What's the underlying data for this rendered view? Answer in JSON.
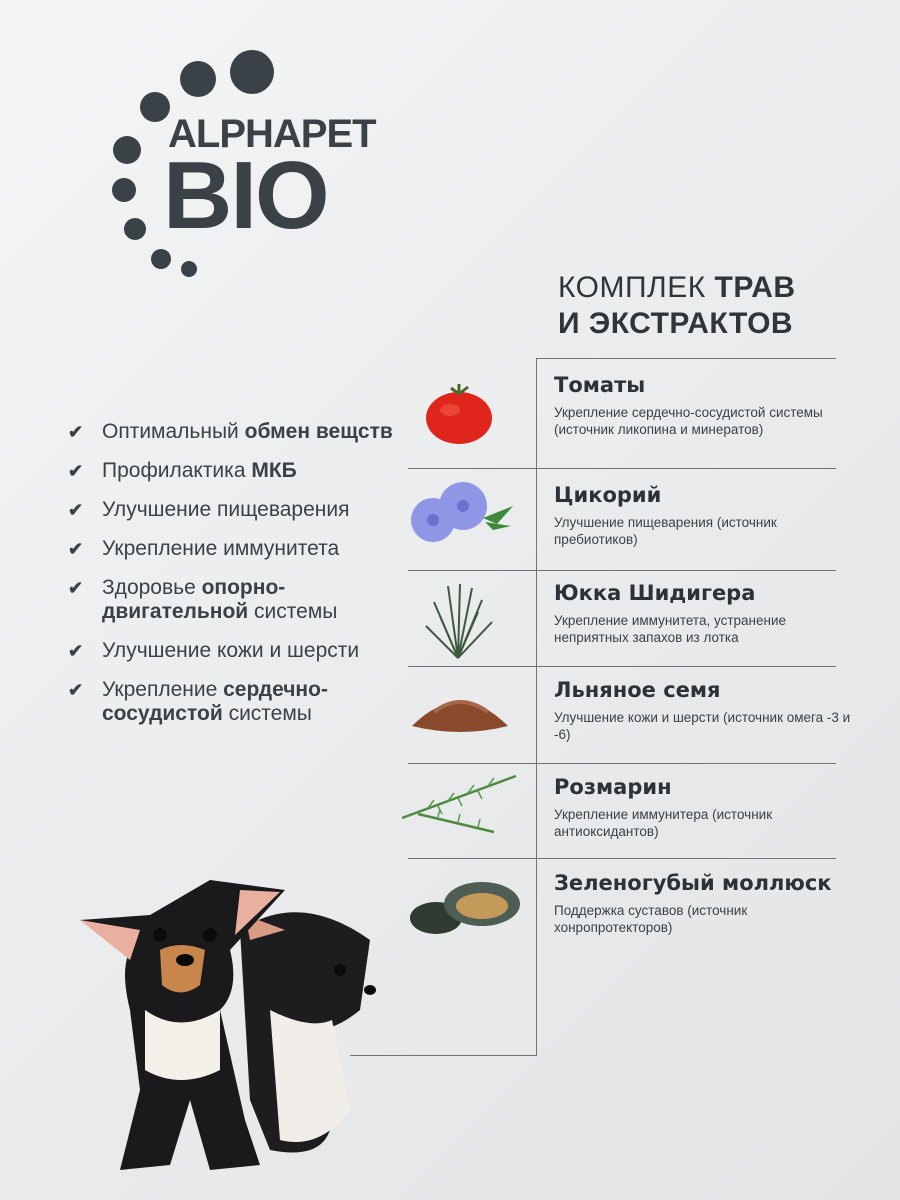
{
  "brand": {
    "line1": "ALPHAPET",
    "line2": "BIO",
    "logo_color": "#3a4248"
  },
  "heading": {
    "normal1": "КОМПЛЕК ",
    "bold1": "ТРАВ",
    "bold2": "И ЭКСТРАКТОВ"
  },
  "benefits": [
    {
      "pre": "Оптимальный ",
      "bold": "обмен вещств",
      "post": ""
    },
    {
      "pre": "Профилактика ",
      "bold": "МКБ",
      "post": ""
    },
    {
      "pre": "Улучшение пищеварения",
      "bold": "",
      "post": ""
    },
    {
      "pre": "Укрепление иммунитета",
      "bold": "",
      "post": ""
    },
    {
      "pre": "Здоровье ",
      "bold": "опорно-двигательной",
      "post": " системы"
    },
    {
      "pre": "Улучшение кожи и шерсти",
      "bold": "",
      "post": ""
    },
    {
      "pre": "Укрепление ",
      "bold": "сердечно-сосудистой",
      "post": " системы"
    }
  ],
  "ingredients": [
    {
      "title": "Томаты",
      "desc": "Укрепление сердечно-сосудистой системы (источник ликопина и минератов)",
      "icon": "tomato-icon"
    },
    {
      "title": "Цикорий",
      "desc": "Улучшение пищеварения (источник пребиотиков)",
      "icon": "chicory-flower-icon"
    },
    {
      "title": "Юкка Шидигера",
      "desc": "Укрепление иммунитета, устранение неприятных запахов из лотка",
      "icon": "yucca-icon"
    },
    {
      "title": "Льняное семя",
      "desc": "Улучшение кожи и шерсти (источник омега -3 и -6)",
      "icon": "flax-seed-icon"
    },
    {
      "title": "Розмарин",
      "desc": "Укрепление иммунитера (источник антиоксидантов)",
      "icon": "rosemary-icon"
    },
    {
      "title": "Зеленогубый моллюск",
      "desc": "Поддержка суставов (источник хонропротекторов)",
      "icon": "mussel-icon"
    }
  ]
}
